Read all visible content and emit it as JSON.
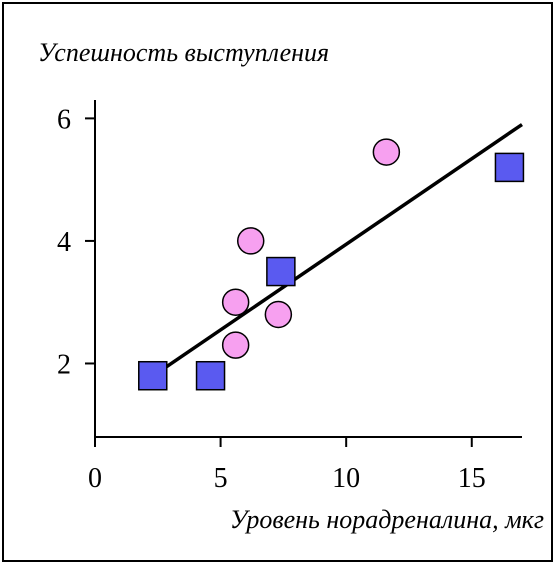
{
  "chart_data": {
    "type": "scatter",
    "ylabel": "Успешность выступления",
    "xlabel": "Уровень норадреналина, мкг",
    "xlim": [
      0,
      17
    ],
    "ylim": [
      0.8,
      6.3
    ],
    "x_ticks": [
      0,
      5,
      10,
      15
    ],
    "y_ticks": [
      2,
      4,
      6
    ],
    "grid": false,
    "series": [
      {
        "marker": "circle",
        "color": "#f7a0f0",
        "points": [
          {
            "x": 5.6,
            "y": 3.0
          },
          {
            "x": 5.6,
            "y": 2.3
          },
          {
            "x": 6.2,
            "y": 4.0
          },
          {
            "x": 7.3,
            "y": 2.8
          },
          {
            "x": 11.6,
            "y": 5.45
          }
        ]
      },
      {
        "marker": "square",
        "color": "#5a5af0",
        "points": [
          {
            "x": 2.3,
            "y": 1.8
          },
          {
            "x": 4.6,
            "y": 1.8
          },
          {
            "x": 7.4,
            "y": 3.5
          },
          {
            "x": 16.5,
            "y": 5.2
          }
        ]
      }
    ],
    "trendline": {
      "x": [
        2.5,
        17.0
      ],
      "y": [
        1.85,
        5.9
      ]
    }
  }
}
